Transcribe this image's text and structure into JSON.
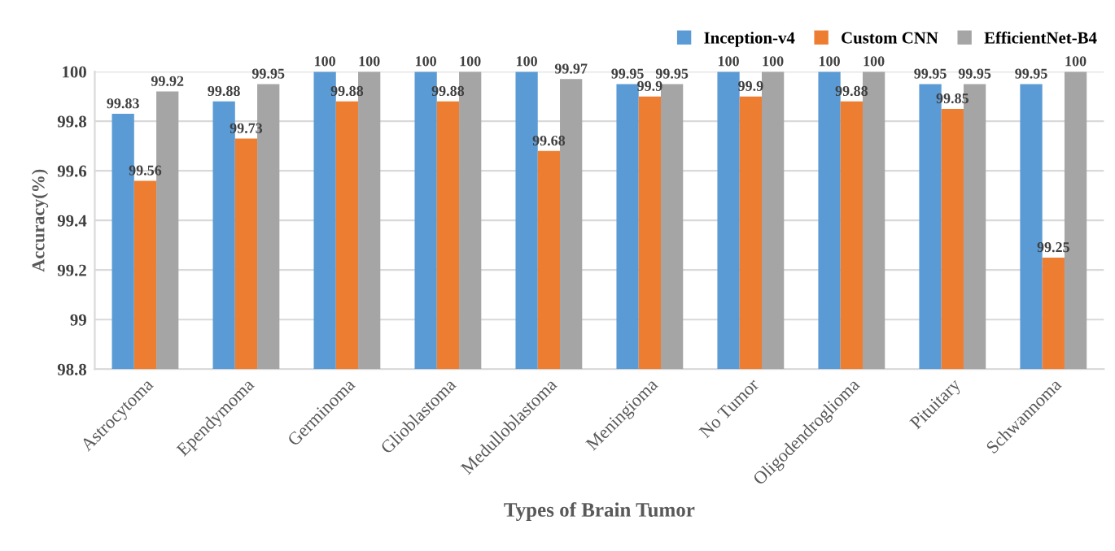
{
  "chart_data": {
    "type": "bar",
    "xlabel": "Types of Brain Tumor",
    "ylabel": "Accuracy(%)",
    "categories": [
      "Astrocytoma",
      "Ependymoma",
      "Germinoma",
      "Glioblastoma",
      "Medulloblastoma",
      "Meningioma",
      "No Tumor",
      "Oligodendroglioma",
      "Pituitary",
      "Schwannoma"
    ],
    "series": [
      {
        "name": "Inception-v4",
        "color": "#5b9bd5",
        "values": [
          99.83,
          99.88,
          100,
          100,
          100,
          99.95,
          100,
          100,
          99.95,
          99.95
        ]
      },
      {
        "name": "Custom CNN",
        "color": "#ed7d31",
        "values": [
          99.56,
          99.73,
          99.88,
          99.88,
          99.68,
          99.9,
          99.9,
          99.88,
          99.85,
          99.25
        ]
      },
      {
        "name": "EfficientNet-B4",
        "color": "#a5a5a5",
        "values": [
          99.92,
          99.95,
          100,
          100,
          99.97,
          99.95,
          100,
          100,
          99.95,
          100
        ]
      }
    ],
    "ylim": [
      98.8,
      100
    ],
    "yticks": [
      98.8,
      99,
      99.2,
      99.4,
      99.6,
      99.8,
      100
    ],
    "grid": "y",
    "legend": "top",
    "data_labels": true
  }
}
